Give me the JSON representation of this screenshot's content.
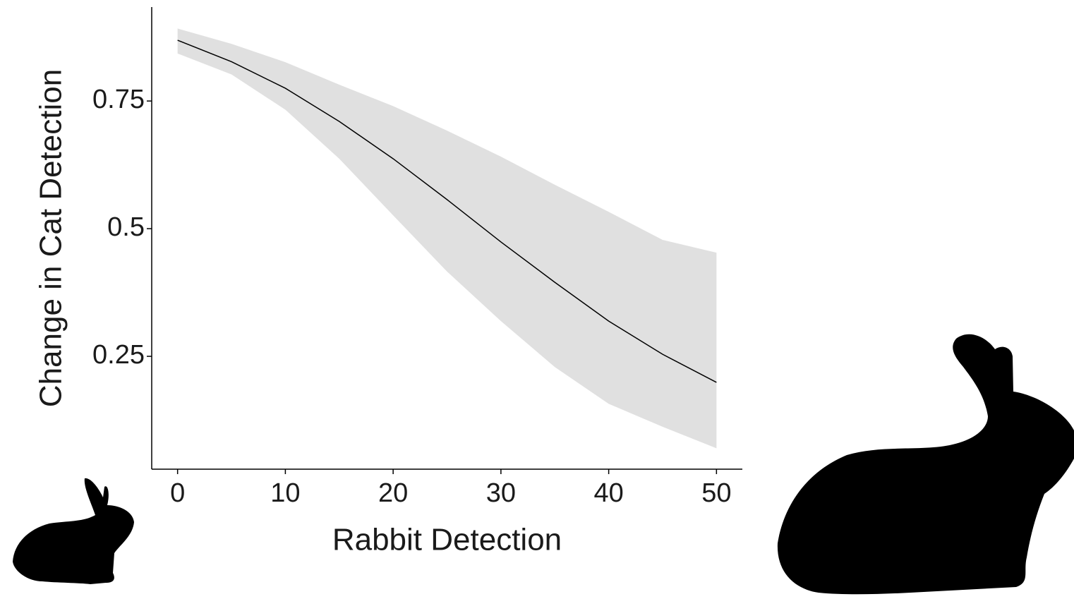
{
  "chart_data": {
    "type": "line",
    "x_label": "Rabbit Detection",
    "y_label": "Change in Cat Detection",
    "x": [
      0,
      5,
      10,
      15,
      20,
      25,
      30,
      35,
      40,
      45,
      50
    ],
    "values": [
      0.869,
      0.827,
      0.775,
      0.71,
      0.637,
      0.557,
      0.474,
      0.395,
      0.319,
      0.254,
      0.199
    ],
    "upper": [
      0.892,
      0.862,
      0.826,
      0.782,
      0.74,
      0.692,
      0.641,
      0.586,
      0.533,
      0.478,
      0.453
    ],
    "lower": [
      0.843,
      0.802,
      0.733,
      0.637,
      0.526,
      0.416,
      0.319,
      0.229,
      0.157,
      0.112,
      0.07
    ],
    "color": "#000000",
    "band_color": "#e0e0e0",
    "xlim": [
      -2.4,
      52.4
    ],
    "ylim": [
      0.029,
      0.934
    ],
    "xticks": [
      0,
      10,
      20,
      30,
      40,
      50
    ],
    "yticks": [
      0.25,
      0.5,
      0.75
    ]
  }
}
